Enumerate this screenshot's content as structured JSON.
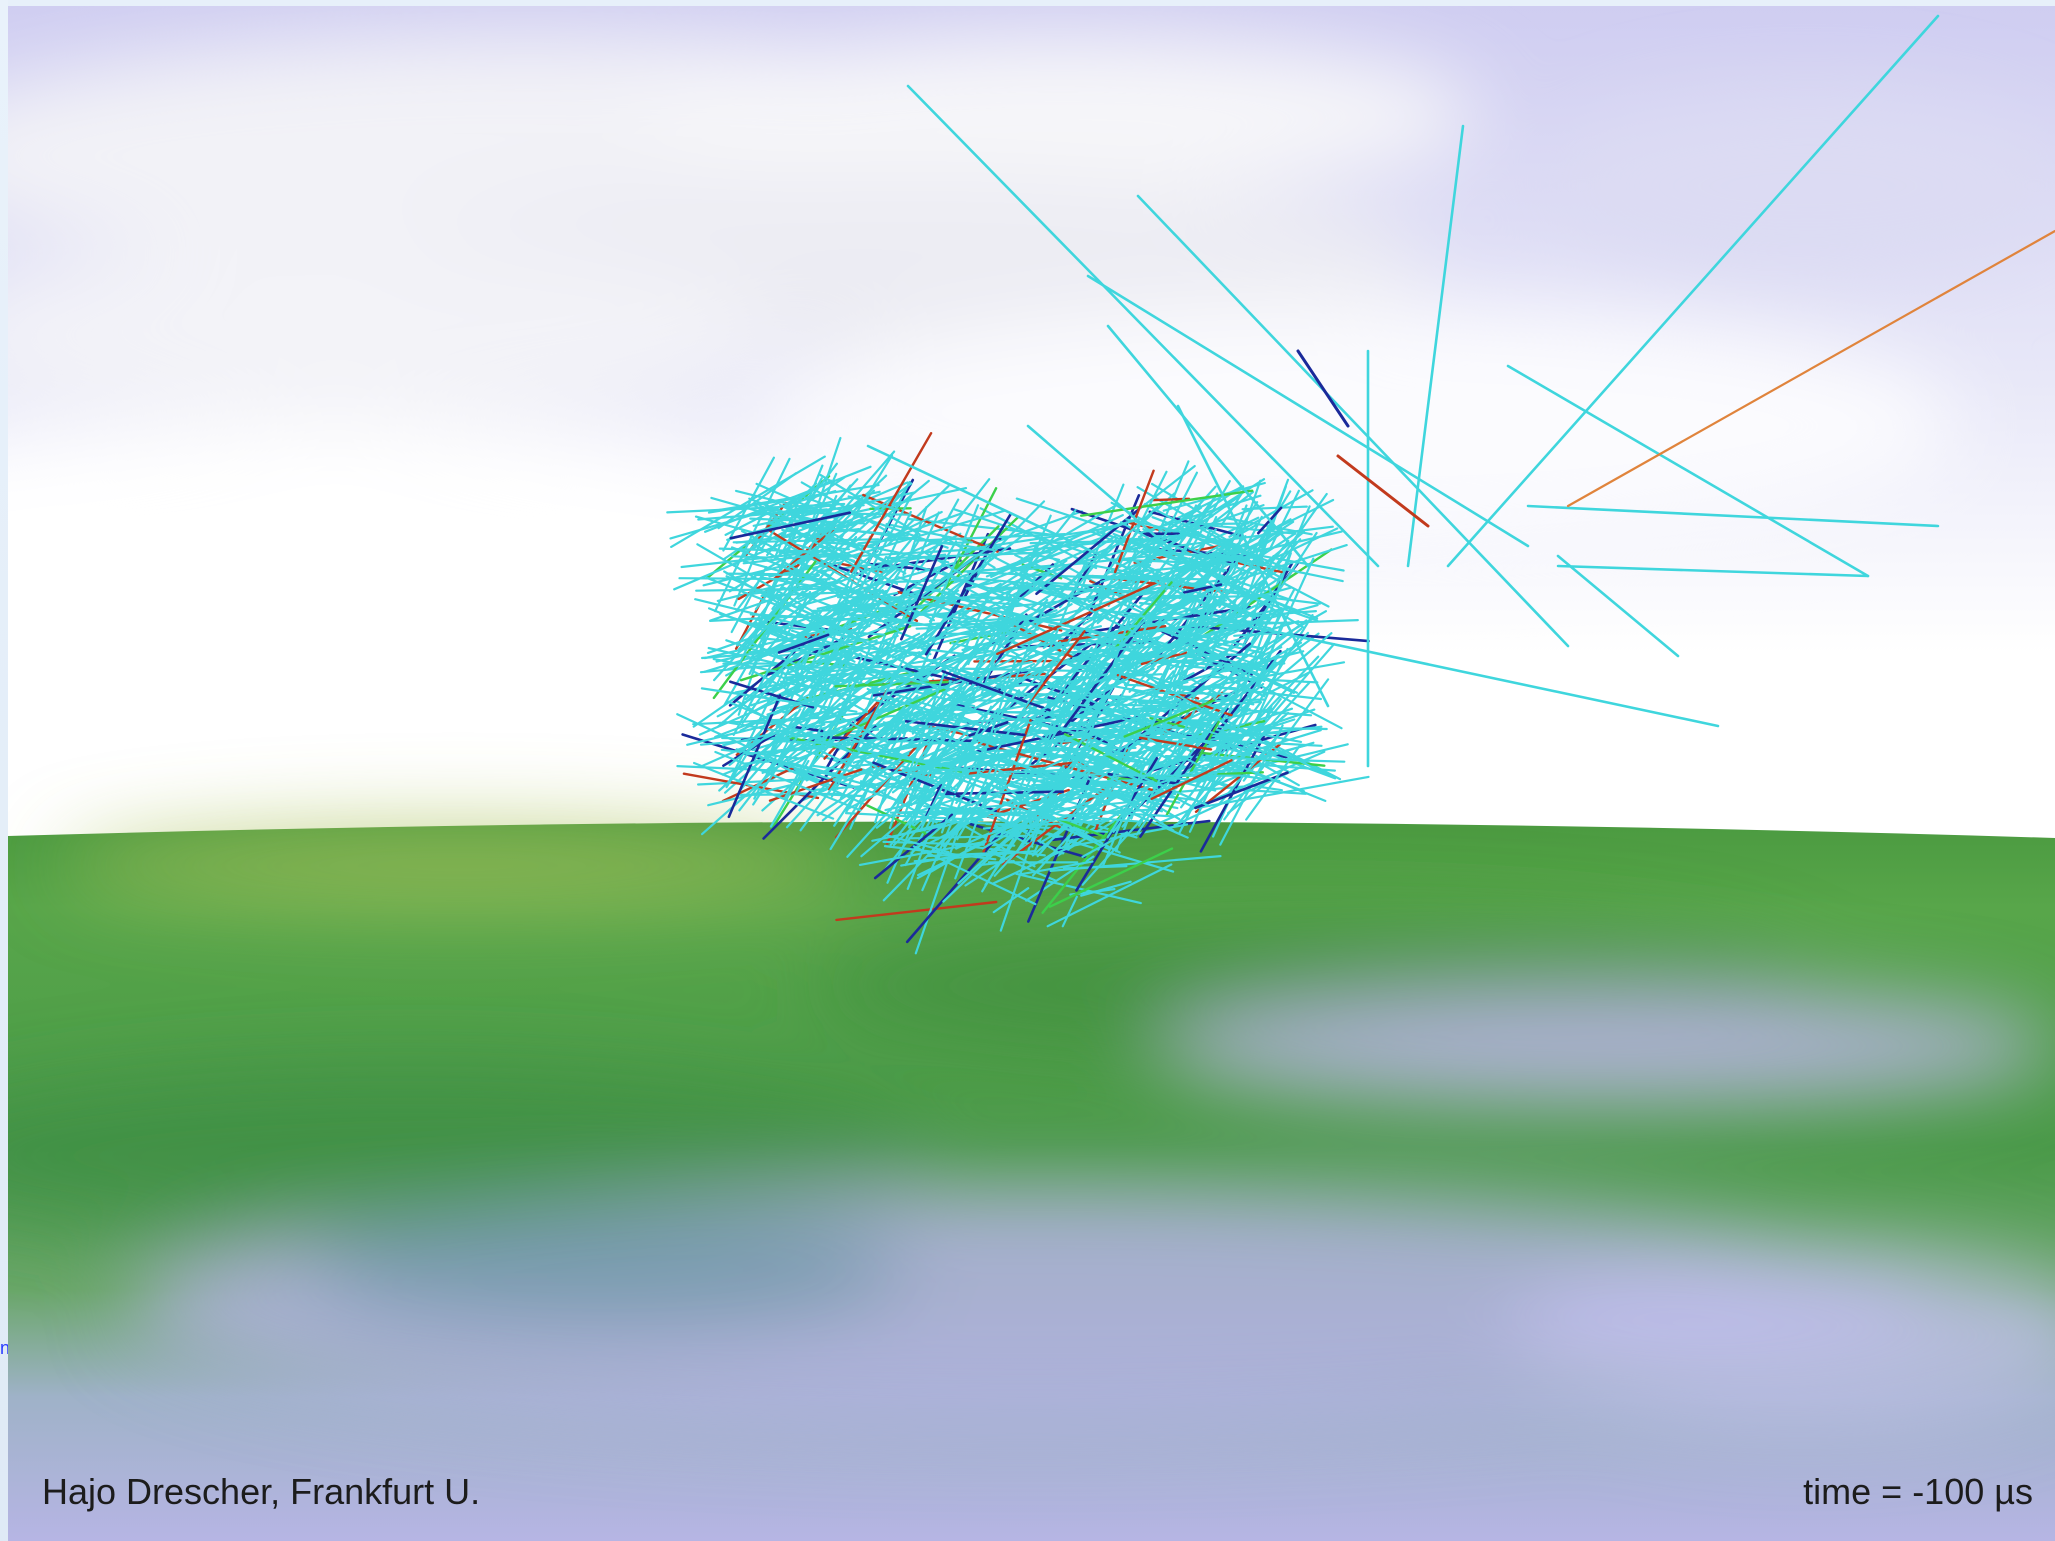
{
  "image": {
    "subject": "cosmic-ray air shower particle tracks above ground",
    "colors": {
      "sky_top": "#c9c6ef",
      "sky_horizon": "#fbfdff",
      "ground_near": "#3f8f3a",
      "ground_far": "#5da74e",
      "reflection": "#b9b6e6",
      "track_primary": "#3fd6dd",
      "track_secondary": "#1a2a9a",
      "track_hadron": "#c23a1d",
      "track_lepton": "#3cd04a",
      "track_orange": "#e0843c"
    }
  },
  "captions": {
    "credit": "Hajo Drescher, Frankfurt U.",
    "time": "time = -100 µs"
  },
  "edge_fragment": "n"
}
